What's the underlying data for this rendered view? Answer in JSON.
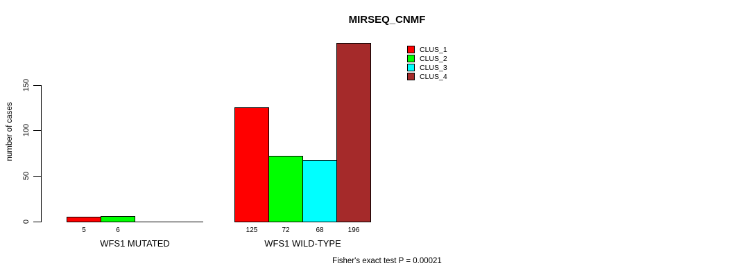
{
  "title": "MIRSEQ_CNMF",
  "footer": "Fisher's exact test P = 0.00021",
  "chart_data": {
    "type": "bar",
    "title": "MIRSEQ_CNMF",
    "xlabel": "",
    "ylabel": "number of cases",
    "ylim": [
      0,
      150
    ],
    "yticks": [
      0,
      50,
      100,
      150
    ],
    "grid": false,
    "legend_position": "top-right",
    "axis_color": "#000000",
    "bar_border_color": "#000000",
    "categories": [
      "WFS1 MUTATED",
      "WFS1 WILD-TYPE"
    ],
    "groups": [
      {
        "label": "WFS1 MUTATED",
        "values": [
          5,
          6,
          0,
          0
        ],
        "value_labels": [
          "5",
          "6",
          "",
          ""
        ]
      },
      {
        "label": "WFS1 WILD-TYPE",
        "values": [
          125,
          72,
          68,
          196
        ],
        "value_labels": [
          "125",
          "72",
          "68",
          "196"
        ]
      }
    ],
    "series": [
      {
        "name": "CLUS_1",
        "color": "#FF0000"
      },
      {
        "name": "CLUS_2",
        "color": "#00FF00"
      },
      {
        "name": "CLUS_3",
        "color": "#00FFFF"
      },
      {
        "name": "CLUS_4",
        "color": "#A52A2A"
      }
    ],
    "annotation": "Fisher's exact test P = 0.00021"
  }
}
